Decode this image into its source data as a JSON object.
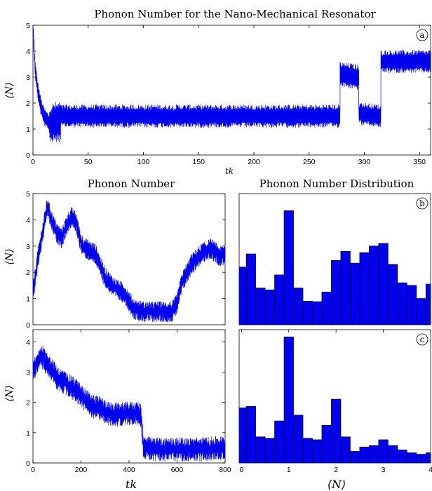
{
  "chart_data": [
    {
      "panel": "a",
      "type": "line",
      "title": "Phonon Number for the Nano-Mechanical Resonator",
      "xlabel": "tk",
      "ylabel": "⟨N⟩",
      "xlim": [
        0,
        360
      ],
      "ylim": [
        0,
        5
      ],
      "xticks": [
        0,
        50,
        100,
        150,
        200,
        250,
        300,
        350
      ],
      "yticks": [
        0,
        1,
        2,
        3,
        4,
        5
      ],
      "color": "#0000ee",
      "series": [
        {
          "segments": [
            {
              "x": [
                0,
                1,
                2,
                4,
                7,
                10,
                15
              ],
              "level": [
                5.0,
                4.2,
                3.3,
                2.6,
                1.9,
                1.5,
                1.2
              ],
              "band": 0.35
            },
            {
              "x": [
                15,
                25
              ],
              "level": [
                1.2,
                1.3
              ],
              "band": 0.8
            },
            {
              "x": [
                25,
                278
              ],
              "level": [
                1.5,
                1.5
              ],
              "band": 0.45
            },
            {
              "x": [
                278,
                295
              ],
              "level": [
                3.1,
                3.0
              ],
              "band": 0.5
            },
            {
              "x": [
                295,
                315
              ],
              "level": [
                1.6,
                1.5
              ],
              "band": 0.45
            },
            {
              "x": [
                315,
                360
              ],
              "level": [
                3.6,
                3.6
              ],
              "band": 0.45
            }
          ]
        }
      ]
    },
    {
      "panel": "b-left",
      "type": "line",
      "title": "Phonon Number",
      "xlabel": "",
      "ylabel": "⟨N⟩",
      "xlim": [
        0,
        800
      ],
      "ylim": [
        0,
        5
      ],
      "xticks": [],
      "yticks": [
        0,
        1,
        2,
        3,
        4,
        5
      ],
      "color": "#0000ee",
      "series": [
        {
          "points": [
            [
              0,
              1.2
            ],
            [
              20,
              2.5
            ],
            [
              40,
              3.5
            ],
            [
              60,
              4.5
            ],
            [
              80,
              3.9
            ],
            [
              100,
              3.5
            ],
            [
              120,
              3.3
            ],
            [
              140,
              3.8
            ],
            [
              160,
              4.1
            ],
            [
              180,
              3.9
            ],
            [
              200,
              3.1
            ],
            [
              220,
              2.9
            ],
            [
              260,
              2.7
            ],
            [
              300,
              1.8
            ],
            [
              340,
              1.4
            ],
            [
              380,
              1.2
            ],
            [
              420,
              0.6
            ],
            [
              460,
              0.5
            ],
            [
              500,
              0.5
            ],
            [
              540,
              0.5
            ],
            [
              580,
              0.5
            ],
            [
              600,
              0.8
            ],
            [
              620,
              1.6
            ],
            [
              660,
              2.3
            ],
            [
              700,
              2.7
            ],
            [
              740,
              2.9
            ],
            [
              780,
              2.6
            ],
            [
              800,
              2.7
            ]
          ],
          "band": 0.8
        }
      ]
    },
    {
      "panel": "b",
      "type": "bar",
      "title": "Phonon Number Distribution",
      "xlabel": "",
      "ylabel": "",
      "xlim": [
        -0.05,
        4.0
      ],
      "ylim": [
        0,
        5
      ],
      "xticks": [],
      "yticks": [],
      "color": "#0000ee",
      "x": [
        0.0,
        0.2,
        0.4,
        0.6,
        0.8,
        1.0,
        1.2,
        1.4,
        1.6,
        1.8,
        2.0,
        2.2,
        2.4,
        2.6,
        2.8,
        3.0,
        3.2,
        3.4,
        3.6,
        3.8,
        4.0
      ],
      "values": [
        2.2,
        2.7,
        1.4,
        1.33,
        1.9,
        4.35,
        1.4,
        0.9,
        0.88,
        1.25,
        2.45,
        2.8,
        2.35,
        2.75,
        3.0,
        3.1,
        2.3,
        1.6,
        1.5,
        1.0,
        1.55
      ]
    },
    {
      "panel": "c-left",
      "type": "line",
      "title": "",
      "xlabel": "tk",
      "ylabel": "⟨N⟩",
      "xlim": [
        0,
        800
      ],
      "ylim": [
        0,
        4.4
      ],
      "xticks": [
        0,
        200,
        400,
        600,
        800
      ],
      "yticks": [
        0,
        1,
        2,
        3,
        4
      ],
      "color": "#0000ee",
      "series": [
        {
          "points": [
            [
              0,
              3.0
            ],
            [
              20,
              3.4
            ],
            [
              40,
              3.5
            ],
            [
              60,
              3.2
            ],
            [
              80,
              3.1
            ],
            [
              100,
              2.8
            ],
            [
              140,
              2.6
            ],
            [
              180,
              2.4
            ],
            [
              200,
              2.2
            ],
            [
              240,
              1.9
            ],
            [
              280,
              1.8
            ],
            [
              320,
              1.6
            ],
            [
              360,
              1.6
            ],
            [
              420,
              1.65
            ],
            [
              450,
              1.6
            ],
            [
              460,
              0.5
            ],
            [
              500,
              0.45
            ],
            [
              560,
              0.45
            ],
            [
              620,
              0.45
            ],
            [
              700,
              0.45
            ],
            [
              800,
              0.5
            ]
          ],
          "band": 0.8
        }
      ]
    },
    {
      "panel": "c",
      "type": "bar",
      "title": "",
      "xlabel": "⟨N⟩",
      "ylabel": "",
      "xlim": [
        -0.05,
        4.0
      ],
      "ylim": [
        0,
        4.6
      ],
      "xticks": [
        0,
        1,
        2,
        3,
        4
      ],
      "yticks": [],
      "color": "#0000ee",
      "x": [
        0.0,
        0.2,
        0.4,
        0.6,
        0.8,
        1.0,
        1.2,
        1.4,
        1.6,
        1.8,
        2.0,
        2.2,
        2.4,
        2.6,
        2.8,
        3.0,
        3.2,
        3.4,
        3.6,
        3.8,
        4.0
      ],
      "values": [
        1.9,
        1.95,
        0.9,
        0.85,
        1.45,
        4.35,
        1.65,
        0.85,
        0.8,
        1.3,
        2.2,
        0.9,
        0.4,
        0.55,
        0.6,
        0.8,
        0.6,
        0.45,
        0.35,
        0.3,
        0.35
      ]
    }
  ]
}
